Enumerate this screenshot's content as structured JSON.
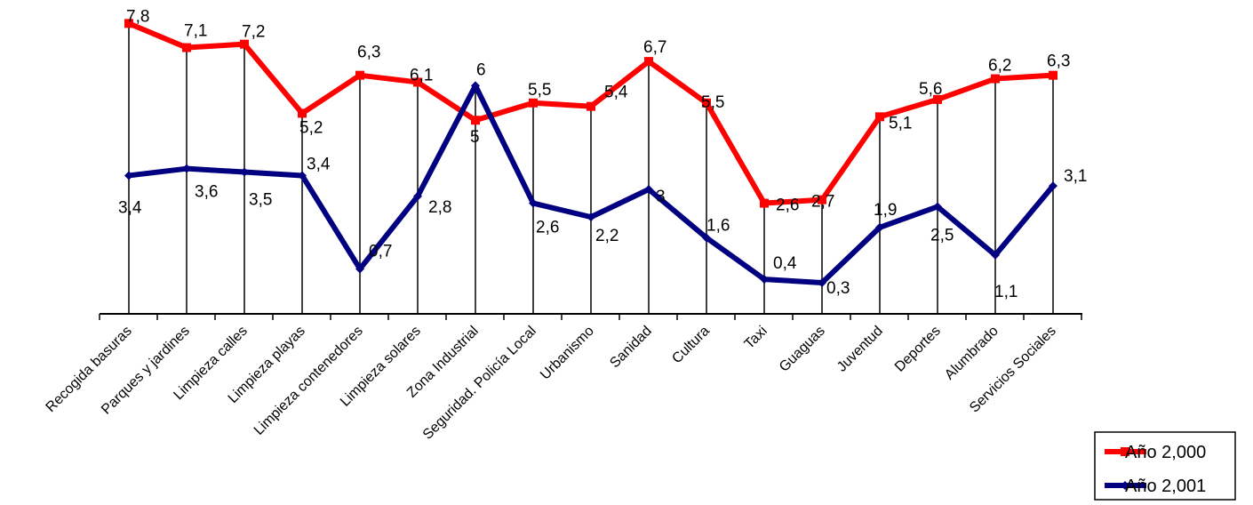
{
  "chart_data": {
    "type": "line",
    "categories": [
      "Recogida basuras",
      "Parques y jardines",
      "Limpieza calles",
      "Limpieza playas",
      "Limpieza contenedores",
      "Limpieza solares",
      "Zona Industrial",
      "Seguridad. Policía Local",
      "Urbanismo",
      "Sanidad",
      "Cultura",
      "Taxi",
      "Guaguas",
      "Juventud",
      "Deportes",
      "Alumbrado",
      "Servicios Sociales"
    ],
    "series": [
      {
        "name": "Año 2,000",
        "color": "#ff0000",
        "marker": "square",
        "values": [
          7.8,
          7.1,
          7.2,
          5.2,
          6.3,
          6.1,
          5,
          5.5,
          5.4,
          6.7,
          5.5,
          2.6,
          2.7,
          5.1,
          5.6,
          6.2,
          6.3
        ],
        "labels": [
          "7,8",
          "7,1",
          "7,2",
          "5,2",
          "6,3",
          "6,1",
          "5",
          "5,5",
          "5,4",
          "6,7",
          "5,5",
          "2,6",
          "2,7",
          "5,1",
          "5,6",
          "6,2",
          "6,3"
        ]
      },
      {
        "name": "Año 2,001",
        "color": "#000080",
        "marker": "diamond",
        "values": [
          3.4,
          3.6,
          3.5,
          3.4,
          0.7,
          2.8,
          6,
          2.6,
          2.2,
          3,
          1.6,
          0.4,
          0.3,
          1.9,
          2.5,
          1.1,
          3.1
        ],
        "labels": [
          "3,4",
          "3,6",
          "3,5",
          "3,4",
          "0,7",
          "2,8",
          "6",
          "2,6",
          "2,2",
          "3",
          "1,6",
          "0,4",
          "0,3",
          "1,9",
          "2,5",
          "1,1",
          "3,1"
        ]
      }
    ],
    "ylim": [
      -0.6,
      8.4
    ],
    "gridlines": "vertical drop lines at each category",
    "legend_position": "bottom-right"
  }
}
